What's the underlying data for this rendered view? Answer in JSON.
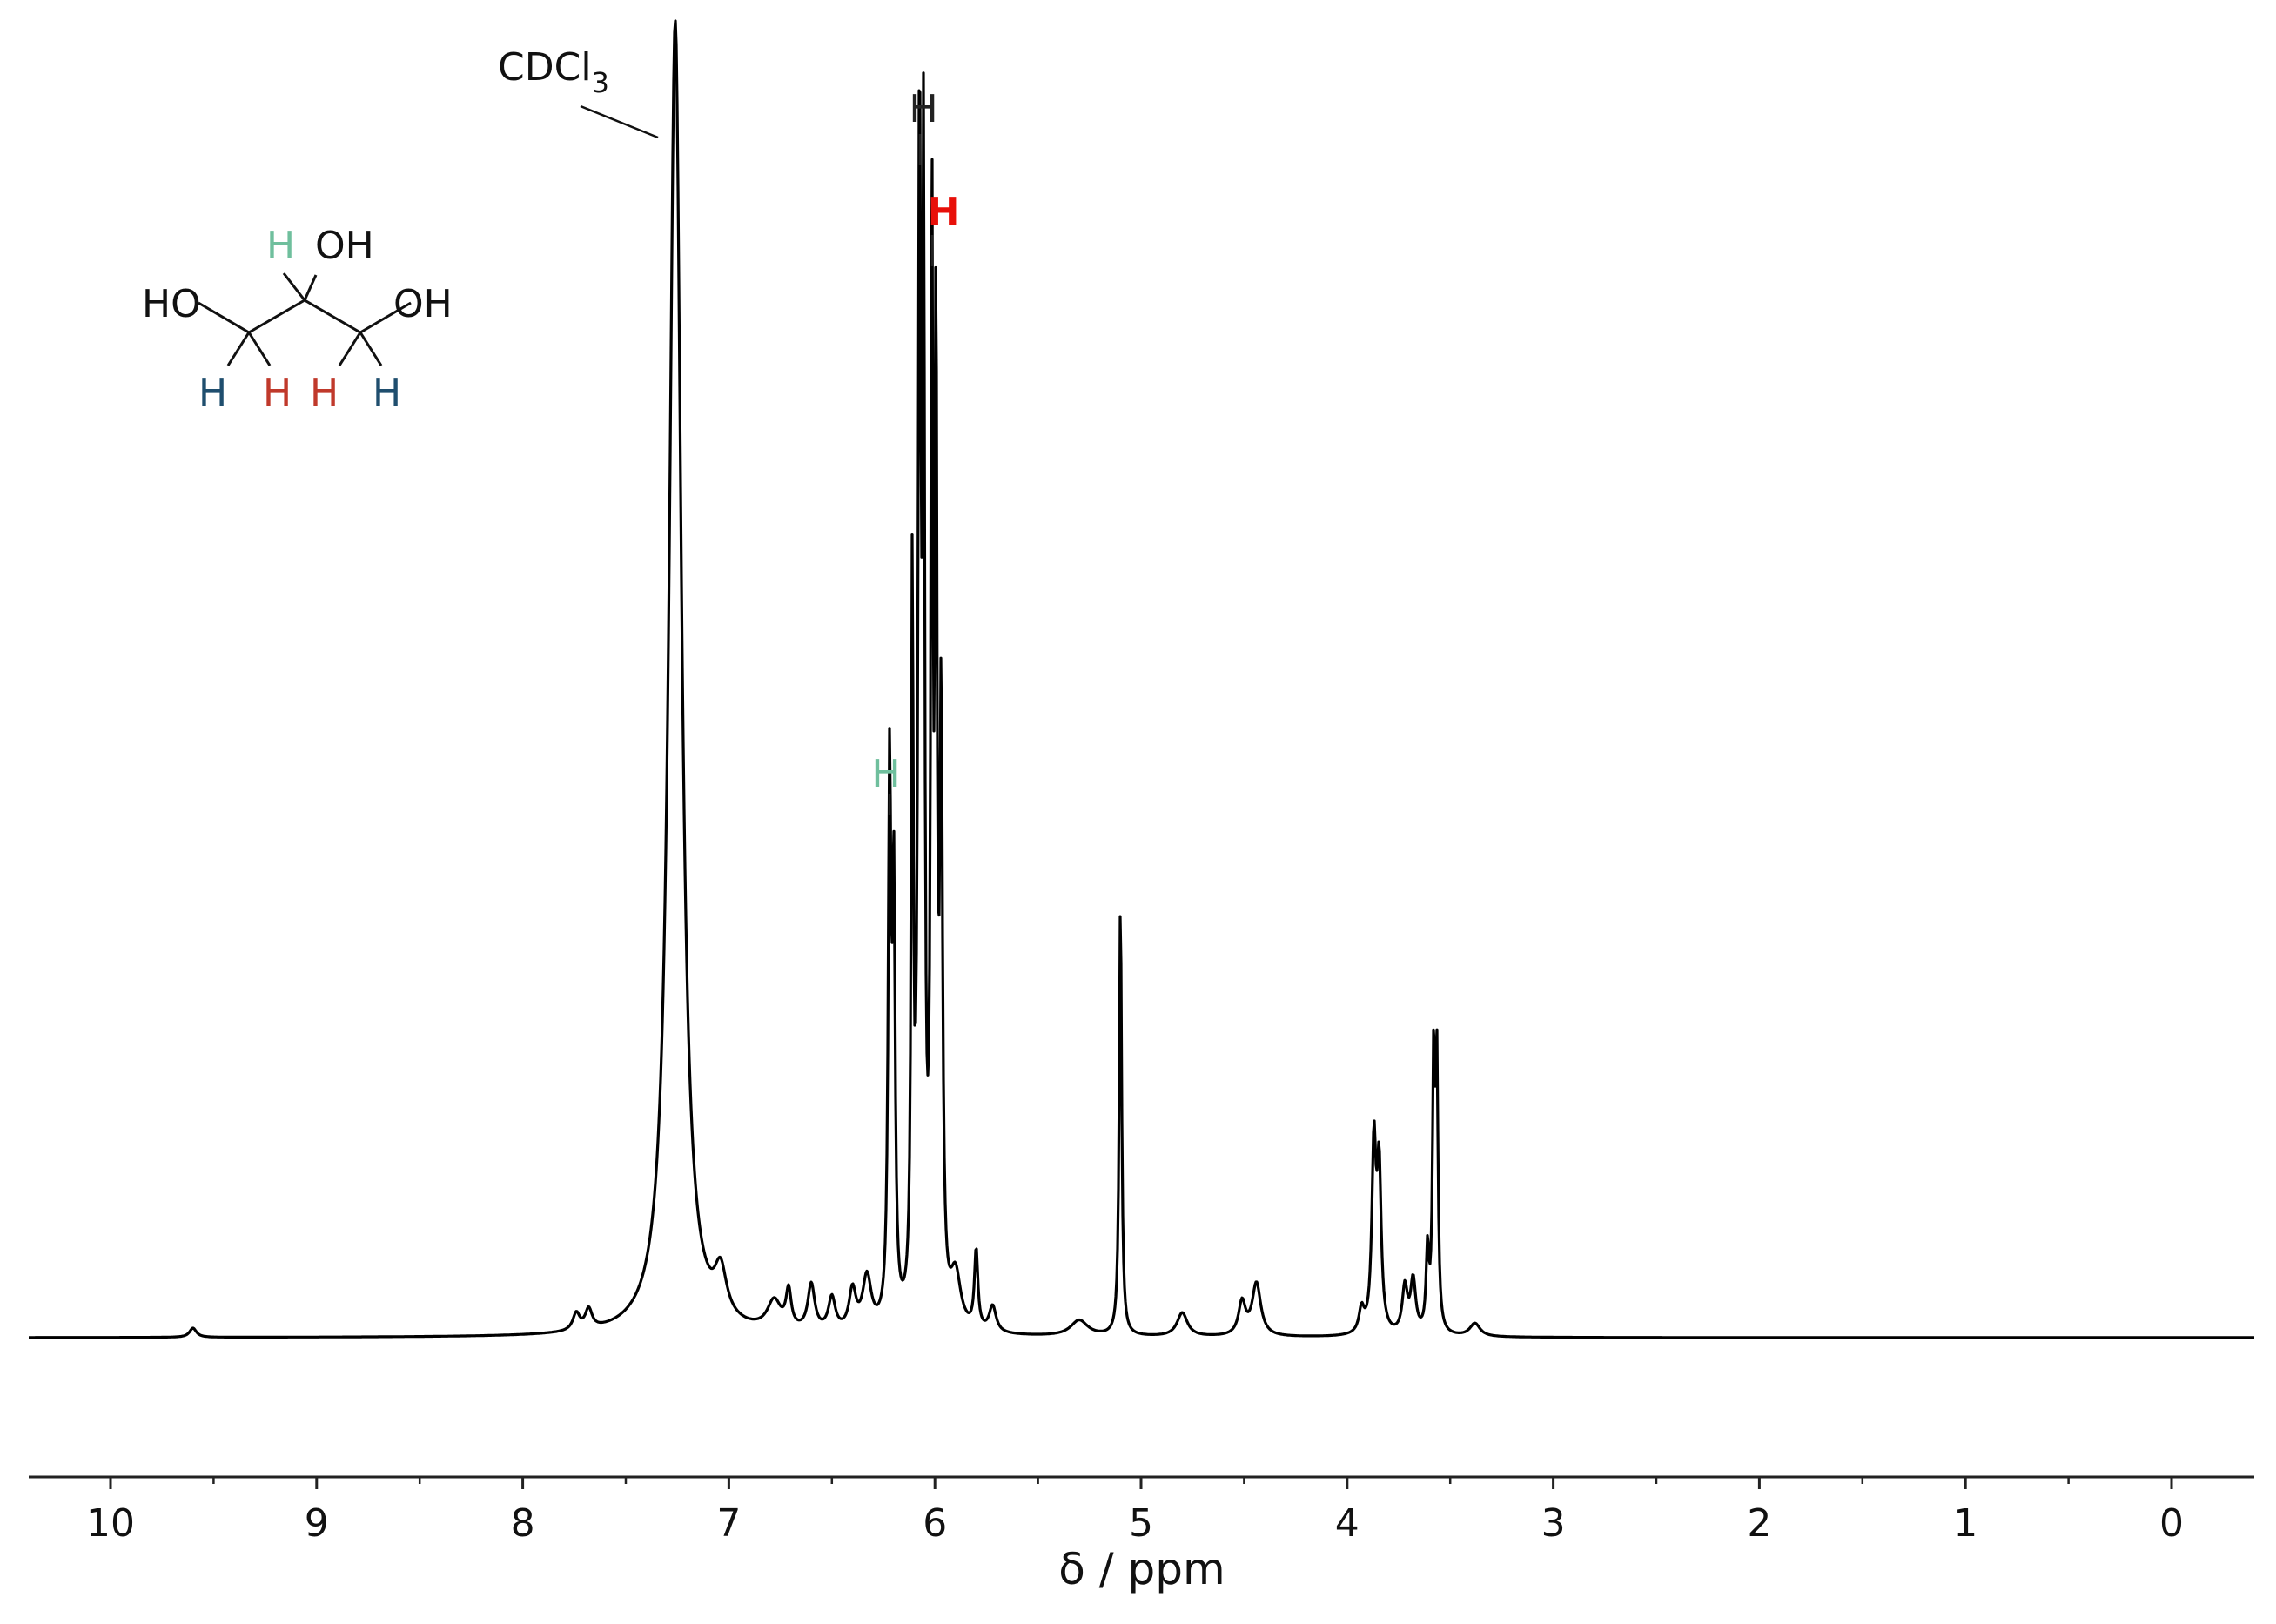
{
  "chart_data": {
    "type": "line",
    "xlabel": "δ / ppm",
    "ylabel": "",
    "xlim": [
      10.4,
      -0.4
    ],
    "x_reversed": true,
    "grid": false,
    "ticks": [
      10,
      9,
      8,
      7,
      6,
      5,
      4,
      3,
      2,
      1,
      0
    ],
    "tick_labels": [
      "10",
      "9",
      "8",
      "7",
      "6",
      "5",
      "4",
      "3",
      "2",
      "1",
      "0"
    ],
    "series": [
      {
        "line_color": "#000000",
        "peaks": [
          {
            "ppm": 9.6,
            "rel_height": 0.007,
            "width_ppm": 0.02
          },
          {
            "ppm": 7.74,
            "rel_height": 0.013,
            "width_ppm": 0.02
          },
          {
            "ppm": 7.68,
            "rel_height": 0.015,
            "width_ppm": 0.02
          },
          {
            "ppm": 7.26,
            "rel_height": 1.0,
            "width_ppm": 0.035,
            "clipped": true
          },
          {
            "ppm": 7.04,
            "rel_height": 0.035,
            "width_ppm": 0.035
          },
          {
            "ppm": 6.78,
            "rel_height": 0.022,
            "width_ppm": 0.04
          },
          {
            "ppm": 6.71,
            "rel_height": 0.028,
            "width_ppm": 0.015
          },
          {
            "ppm": 6.6,
            "rel_height": 0.035,
            "width_ppm": 0.02
          },
          {
            "ppm": 6.5,
            "rel_height": 0.025,
            "width_ppm": 0.02
          },
          {
            "ppm": 6.4,
            "rel_height": 0.03,
            "width_ppm": 0.02
          },
          {
            "ppm": 6.33,
            "rel_height": 0.04,
            "width_ppm": 0.025
          },
          {
            "ppm": 6.22,
            "rel_height": 0.41,
            "width_ppm": 0.008
          },
          {
            "ppm": 6.2,
            "rel_height": 0.32,
            "width_ppm": 0.008
          },
          {
            "ppm": 6.11,
            "rel_height": 0.55,
            "width_ppm": 0.006
          },
          {
            "ppm": 6.075,
            "rel_height": 0.9,
            "width_ppm": 0.008
          },
          {
            "ppm": 6.055,
            "rel_height": 0.8,
            "width_ppm": 0.006
          },
          {
            "ppm": 6.015,
            "rel_height": 0.82,
            "width_ppm": 0.006
          },
          {
            "ppm": 5.995,
            "rel_height": 0.72,
            "width_ppm": 0.006
          },
          {
            "ppm": 5.97,
            "rel_height": 0.45,
            "width_ppm": 0.008
          },
          {
            "ppm": 5.9,
            "rel_height": 0.04,
            "width_ppm": 0.03
          },
          {
            "ppm": 5.8,
            "rel_height": 0.06,
            "width_ppm": 0.01
          },
          {
            "ppm": 5.72,
            "rel_height": 0.02,
            "width_ppm": 0.02
          },
          {
            "ppm": 5.3,
            "rel_height": 0.012,
            "width_ppm": 0.05
          },
          {
            "ppm": 5.1,
            "rel_height": 0.33,
            "width_ppm": 0.007
          },
          {
            "ppm": 4.8,
            "rel_height": 0.018,
            "width_ppm": 0.03
          },
          {
            "ppm": 4.51,
            "rel_height": 0.025,
            "width_ppm": 0.02
          },
          {
            "ppm": 4.44,
            "rel_height": 0.04,
            "width_ppm": 0.025
          },
          {
            "ppm": 3.93,
            "rel_height": 0.018,
            "width_ppm": 0.015
          },
          {
            "ppm": 3.87,
            "rel_height": 0.14,
            "width_ppm": 0.012
          },
          {
            "ppm": 3.845,
            "rel_height": 0.12,
            "width_ppm": 0.012
          },
          {
            "ppm": 3.72,
            "rel_height": 0.035,
            "width_ppm": 0.015
          },
          {
            "ppm": 3.68,
            "rel_height": 0.04,
            "width_ppm": 0.015
          },
          {
            "ppm": 3.61,
            "rel_height": 0.06,
            "width_ppm": 0.008
          },
          {
            "ppm": 3.58,
            "rel_height": 0.2,
            "width_ppm": 0.007
          },
          {
            "ppm": 3.565,
            "rel_height": 0.2,
            "width_ppm": 0.007
          },
          {
            "ppm": 3.38,
            "rel_height": 0.01,
            "width_ppm": 0.03
          }
        ]
      }
    ],
    "annotations": [
      {
        "text": "CDCl3",
        "base": "CDCl",
        "subscript": "3",
        "ppm": 7.26
      },
      {
        "text": "H",
        "ppm": 6.07,
        "color": "#222222"
      },
      {
        "text": "H",
        "ppm": 5.99,
        "color": "#e8100a"
      },
      {
        "text": "H",
        "ppm": 6.22,
        "color": "#6fbf9d"
      }
    ]
  },
  "structure": {
    "left_label": "HO",
    "top_label": "OH",
    "right_label": "OH",
    "h_top": "H",
    "h_bottom_left": "H",
    "h_bottom_inner_left": "H",
    "h_bottom_inner_right": "H",
    "h_bottom_right": "H",
    "colors": {
      "methine": "#6fbf9d",
      "inner": "#c0392b",
      "outer": "#1f4e6e"
    }
  }
}
